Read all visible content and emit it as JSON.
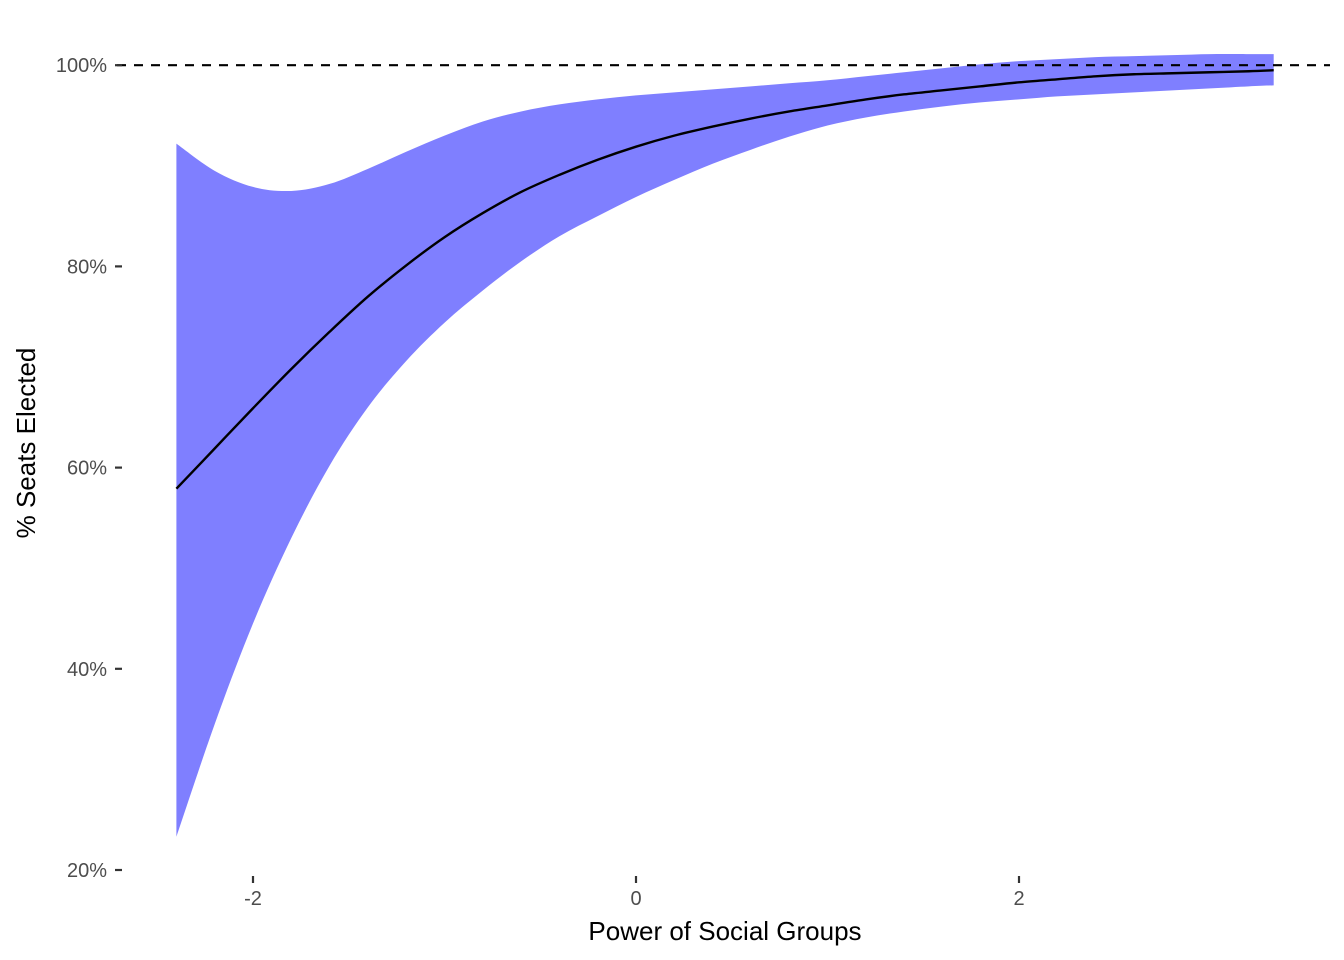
{
  "chart_data": {
    "type": "line",
    "title": "",
    "xlabel": "Power of Social Groups",
    "ylabel": "% Seats Elected",
    "xlim": [
      -2.6,
      3.6
    ],
    "ylim": [
      20,
      102
    ],
    "x_ticks": [
      -2,
      0,
      2
    ],
    "x_tick_labels": [
      "-2",
      "0",
      "2"
    ],
    "y_ticks": [
      20,
      40,
      60,
      80,
      100
    ],
    "y_tick_labels": [
      "20%",
      "40%",
      "60%",
      "80%",
      "100%"
    ],
    "grid": false,
    "legend": "none",
    "reference_line": {
      "y": 100,
      "style": "dashed",
      "color": "#000000"
    },
    "band_color": "#7f7fff",
    "line_color": "#000000",
    "series": [
      {
        "x": [
          -2.4,
          -2.2,
          -2.0,
          -1.8,
          -1.6,
          -1.4,
          -1.2,
          -1.0,
          -0.8,
          -0.6,
          -0.4,
          -0.2,
          0.0,
          0.2,
          0.4,
          0.6,
          0.8,
          1.0,
          1.2,
          1.4,
          1.6,
          1.8,
          2.0,
          2.2,
          2.4,
          2.6,
          2.8,
          3.0,
          3.2,
          3.33
        ],
        "y": [
          57.9,
          61.9,
          65.9,
          69.8,
          73.5,
          77.0,
          80.1,
          82.9,
          85.3,
          87.4,
          89.1,
          90.6,
          91.9,
          93.0,
          93.9,
          94.7,
          95.4,
          96.0,
          96.6,
          97.1,
          97.5,
          97.9,
          98.3,
          98.6,
          98.9,
          99.1,
          99.2,
          99.3,
          99.4,
          99.5
        ],
        "lower": [
          23.3,
          34.5,
          44.5,
          53.0,
          60.2,
          66.0,
          70.6,
          74.4,
          77.6,
          80.5,
          83.0,
          85.0,
          86.9,
          88.6,
          90.2,
          91.6,
          92.9,
          94.0,
          94.8,
          95.4,
          95.9,
          96.3,
          96.6,
          96.9,
          97.1,
          97.3,
          97.5,
          97.7,
          97.9,
          98.0
        ],
        "upper": [
          92.2,
          89.5,
          87.9,
          87.5,
          88.2,
          89.7,
          91.4,
          93.0,
          94.4,
          95.4,
          96.1,
          96.6,
          97.0,
          97.3,
          97.6,
          97.9,
          98.2,
          98.5,
          98.9,
          99.3,
          99.7,
          100.1,
          100.4,
          100.6,
          100.8,
          100.9,
          101.0,
          101.1,
          101.1,
          101.1
        ]
      }
    ]
  }
}
